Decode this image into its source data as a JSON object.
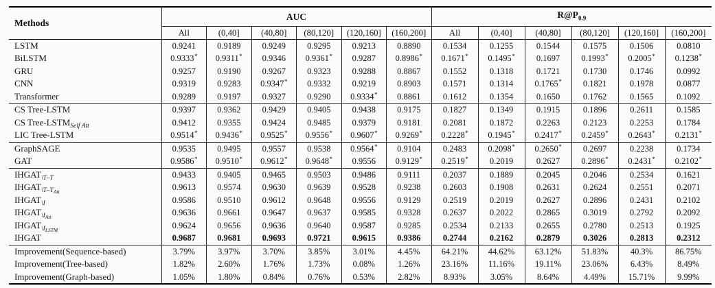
{
  "table": {
    "methods_header": "Methods",
    "groups": [
      {
        "label": "AUC",
        "sub": ""
      },
      {
        "label": "R@P",
        "sub": "0.9"
      }
    ],
    "bins": [
      "All",
      "(0,40]",
      "(40,80]",
      "(80,120]",
      "(120,160]",
      "(160,200]"
    ],
    "sections": [
      {
        "name": "sequence-based",
        "rows": [
          {
            "label": [
              {
                "t": "LSTM"
              }
            ],
            "auc": [
              "0.9241",
              "0.9189",
              "0.9249",
              "0.9295",
              "0.9213",
              "0.8890"
            ],
            "rp": [
              "0.1534",
              "0.1255",
              "0.1544",
              "0.1575",
              "0.1506",
              "0.0810"
            ]
          },
          {
            "label": [
              {
                "t": "BiLSTM"
              }
            ],
            "auc": [
              "0.9333*",
              "0.9311*",
              "0.9346",
              "0.9361*",
              "0.9287",
              "0.8986*"
            ],
            "rp": [
              "0.1671*",
              "0.1495*",
              "0.1697",
              "0.1993*",
              "0.2005*",
              "0.1238*"
            ]
          },
          {
            "label": [
              {
                "t": "GRU"
              }
            ],
            "auc": [
              "0.9257",
              "0.9190",
              "0.9267",
              "0.9323",
              "0.9288",
              "0.8867"
            ],
            "rp": [
              "0.1552",
              "0.1318",
              "0.1721",
              "0.1730",
              "0.1746",
              "0.0992"
            ]
          },
          {
            "label": [
              {
                "t": "CNN"
              }
            ],
            "auc": [
              "0.9319",
              "0.9283",
              "0.9347*",
              "0.9332",
              "0.9219",
              "0.8903"
            ],
            "rp": [
              "0.1571",
              "0.1314",
              "0.1765*",
              "0.1821",
              "0.1978",
              "0.0877"
            ]
          },
          {
            "label": [
              {
                "t": "Transformer"
              }
            ],
            "auc": [
              "0.9289",
              "0.9197",
              "0.9327",
              "0.9290",
              "0.9334*",
              "0.8861"
            ],
            "rp": [
              "0.1612",
              "0.1354",
              "0.1650",
              "0.1762",
              "0.1565",
              "0.1092"
            ]
          }
        ]
      },
      {
        "name": "tree-based",
        "rows": [
          {
            "label": [
              {
                "t": "CS Tree-LSTM"
              }
            ],
            "auc": [
              "0.9397",
              "0.9362",
              "0.9429",
              "0.9405",
              "0.9438",
              "0.9175"
            ],
            "rp": [
              "0.1827",
              "0.1349",
              "0.1915",
              "0.1896",
              "0.2611",
              "0.1585"
            ]
          },
          {
            "label": [
              {
                "t": "CS Tree-LSTM"
              },
              {
                "t": "Self Att",
                "sub": 1
              }
            ],
            "auc": [
              "0.9412",
              "0.9355",
              "0.9424",
              "0.9485",
              "0.9379",
              "0.9181"
            ],
            "rp": [
              "0.2081",
              "0.1872",
              "0.2263",
              "0.2123",
              "0.2253",
              "0.1784"
            ]
          },
          {
            "label": [
              {
                "t": "LIC Tree-LSTM"
              }
            ],
            "auc": [
              "0.9514*",
              "0.9436*",
              "0.9525*",
              "0.9556*",
              "0.9607*",
              "0.9269*"
            ],
            "rp": [
              "0.2228*",
              "0.1945*",
              "0.2417*",
              "0.2459*",
              "0.2643*",
              "0.2131*"
            ]
          }
        ]
      },
      {
        "name": "graph-based",
        "rows": [
          {
            "label": [
              {
                "t": "GraphSAGE"
              }
            ],
            "auc": [
              "0.9535",
              "0.9495",
              "0.9557",
              "0.9538",
              "0.9564*",
              "0.9104"
            ],
            "rp": [
              "0.2483",
              "0.2098*",
              "0.2650*",
              "0.2697",
              "0.2238",
              "0.1734"
            ]
          },
          {
            "label": [
              {
                "t": "GAT"
              }
            ],
            "auc": [
              "0.9586*",
              "0.9510*",
              "0.9612*",
              "0.9648*",
              "0.9556",
              "0.9129*"
            ],
            "rp": [
              "0.2519*",
              "0.2019",
              "0.2627",
              "0.2896*",
              "0.2431*",
              "0.2102*"
            ]
          }
        ]
      },
      {
        "name": "ihgat-ablations",
        "rows": [
          {
            "label": [
              {
                "t": "IHGAT"
              },
              {
                "t": "\\T–T",
                "sub": 1
              }
            ],
            "auc": [
              "0.9433",
              "0.9405",
              "0.9465",
              "0.9503",
              "0.9486",
              "0.9111"
            ],
            "rp": [
              "0.2037",
              "0.1889",
              "0.2045",
              "0.2046",
              "0.2534",
              "0.1621"
            ]
          },
          {
            "label": [
              {
                "t": "IHGAT"
              },
              {
                "t": "\\T–T",
                "sub": 1
              },
              {
                "t": "Att",
                "sub": 2
              }
            ],
            "auc": [
              "0.9613",
              "0.9574",
              "0.9630",
              "0.9639",
              "0.9528",
              "0.9238"
            ],
            "rp": [
              "0.2603",
              "0.1908",
              "0.2631",
              "0.2624",
              "0.2551",
              "0.2071"
            ]
          },
          {
            "label": [
              {
                "t": "IHGAT"
              },
              {
                "t": "\\I",
                "sub": 1
              }
            ],
            "auc": [
              "0.9586",
              "0.9510",
              "0.9612",
              "0.9648",
              "0.9556",
              "0.9129"
            ],
            "rp": [
              "0.2519",
              "0.2019",
              "0.2627",
              "0.2896",
              "0.2431",
              "0.2102"
            ]
          },
          {
            "label": [
              {
                "t": "IHGAT"
              },
              {
                "t": "\\I",
                "sub": 1
              },
              {
                "t": "Att",
                "sub": 2
              }
            ],
            "auc": [
              "0.9636",
              "0.9661",
              "0.9647",
              "0.9637",
              "0.9585",
              "0.9328"
            ],
            "rp": [
              "0.2637",
              "0.2022",
              "0.2865",
              "0.3019",
              "0.2792",
              "0.2092"
            ]
          },
          {
            "label": [
              {
                "t": "IHGAT"
              },
              {
                "t": "\\I",
                "sub": 1
              },
              {
                "t": "LSTM",
                "sub": 2
              }
            ],
            "auc": [
              "0.9624",
              "0.9656",
              "0.9636",
              "0.9640",
              "0.9587",
              "0.9285"
            ],
            "rp": [
              "0.2534",
              "0.2133",
              "0.2655",
              "0.2780",
              "0.2513",
              "0.1925"
            ]
          },
          {
            "label": [
              {
                "t": "IHGAT"
              }
            ],
            "bold": true,
            "auc": [
              "0.9687",
              "0.9681",
              "0.9693",
              "0.9721",
              "0.9615",
              "0.9386"
            ],
            "rp": [
              "0.2744",
              "0.2162",
              "0.2879",
              "0.3026",
              "0.2813",
              "0.2312"
            ]
          }
        ]
      },
      {
        "name": "improvements",
        "rows": [
          {
            "label": [
              {
                "t": "Improvement(Sequence-based)"
              }
            ],
            "auc": [
              "3.79%",
              "3.97%",
              "3.70%",
              "3.85%",
              "3.01%",
              "4.45%"
            ],
            "rp": [
              "64.21%",
              "44.62%",
              "63.12%",
              "51.83%",
              "40.3%",
              "86.75%"
            ]
          },
          {
            "label": [
              {
                "t": "Improvement(Tree-based)"
              }
            ],
            "auc": [
              "1.82%",
              "2.60%",
              "1.76%",
              "1.73%",
              "0.08%",
              "1.26%"
            ],
            "rp": [
              "23.16%",
              "11.16%",
              "19.11%",
              "23.06%",
              "6.43%",
              "8.49%"
            ]
          },
          {
            "label": [
              {
                "t": "Improvement(Graph-based)"
              }
            ],
            "auc": [
              "1.05%",
              "1.80%",
              "0.84%",
              "0.76%",
              "0.53%",
              "2.82%"
            ],
            "rp": [
              "8.93%",
              "3.05%",
              "8.64%",
              "4.49%",
              "15.71%",
              "9.99%"
            ]
          }
        ]
      }
    ]
  }
}
